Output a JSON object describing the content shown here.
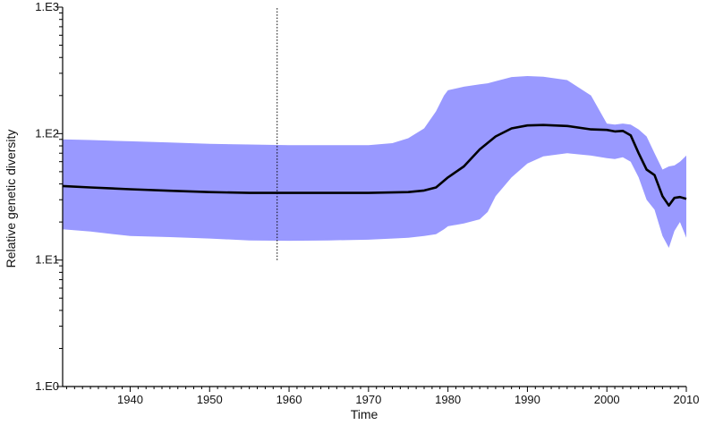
{
  "chart_data": {
    "type": "area",
    "title": "",
    "xlabel": "Time",
    "ylabel": "Relative genetic diversity",
    "xlim": [
      1931.5,
      2010
    ],
    "ylim": [
      1,
      1000
    ],
    "y_scale": "log",
    "grid": false,
    "x_ticks": [
      {
        "value": 1940,
        "label": "1940"
      },
      {
        "value": 1950,
        "label": "1950"
      },
      {
        "value": 1960,
        "label": "1960"
      },
      {
        "value": 1970,
        "label": "1970"
      },
      {
        "value": 1980,
        "label": "1980"
      },
      {
        "value": 1990,
        "label": "1990"
      },
      {
        "value": 2000,
        "label": "2000"
      },
      {
        "value": 2010,
        "label": "2010"
      }
    ],
    "y_ticks": [
      {
        "value": 1,
        "label": "1.E0"
      },
      {
        "value": 10,
        "label": "1.E1"
      },
      {
        "value": 100,
        "label": "1.E2"
      },
      {
        "value": 1000,
        "label": "1.E3"
      }
    ],
    "vline": {
      "x": 1958.5,
      "y_range": [
        10,
        1000
      ],
      "style": "dotted"
    },
    "median": {
      "color": "#000000",
      "x": [
        1931.5,
        1935,
        1940,
        1945,
        1950,
        1955,
        1960,
        1965,
        1970,
        1975,
        1977,
        1978.5,
        1980,
        1982,
        1984,
        1986,
        1988,
        1990,
        1992,
        1995,
        1998,
        2000,
        2001,
        2002,
        2003,
        2004,
        2005,
        2006,
        2007,
        2007.8,
        2008.5,
        2009.2,
        2010
      ],
      "y": [
        38.5,
        37.5,
        36.3,
        35.3,
        34.5,
        34,
        34,
        34,
        34,
        34.5,
        35.5,
        37.5,
        45,
        55,
        75,
        95,
        110,
        116,
        117,
        115,
        108,
        107,
        104,
        105,
        97,
        70,
        52,
        47,
        32,
        27,
        31,
        31.5,
        30.5
      ]
    },
    "hpd_interval": {
      "color": "#9999ff",
      "x": [
        1931.5,
        1935,
        1940,
        1945,
        1950,
        1955,
        1960,
        1965,
        1970,
        1973,
        1975,
        1977,
        1978.5,
        1979.5,
        1980,
        1982,
        1984,
        1985,
        1986,
        1988,
        1990,
        1992,
        1995,
        1998,
        2000,
        2001,
        2002,
        2003,
        2004,
        2005,
        2006,
        2007,
        2007.8,
        2008.5,
        2009.2,
        2010
      ],
      "upper": [
        90,
        89,
        87,
        85,
        83,
        82,
        81,
        81,
        81,
        84,
        92,
        110,
        150,
        200,
        220,
        235,
        245,
        250,
        260,
        280,
        285,
        282,
        265,
        200,
        120,
        118,
        120,
        118,
        108,
        95,
        70,
        52,
        55,
        56,
        60,
        67
      ],
      "lower": [
        17.5,
        16.8,
        15.5,
        15.2,
        14.8,
        14.3,
        14.2,
        14.3,
        14.5,
        14.8,
        15,
        15.5,
        16,
        17.5,
        18.5,
        19.5,
        21,
        24,
        32,
        45,
        58,
        66,
        70,
        67,
        64,
        63,
        65,
        60,
        45,
        30,
        25,
        15.5,
        12.5,
        17,
        20,
        15
      ]
    }
  }
}
